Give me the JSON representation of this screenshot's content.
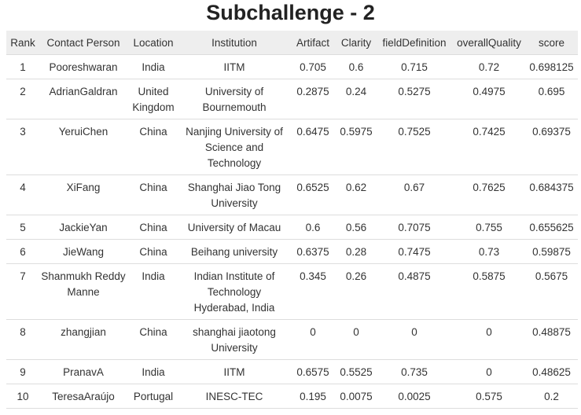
{
  "title": "Subchallenge - 2",
  "table": {
    "headers": [
      "Rank",
      "Contact Person",
      "Location",
      "Institution",
      "Artifact",
      "Clarity",
      "fieldDefinition",
      "overallQuality",
      "score"
    ],
    "rows": [
      [
        "1",
        "Pooreshwaran",
        "India",
        "IITM",
        "0.705",
        "0.6",
        "0.715",
        "0.72",
        "0.698125"
      ],
      [
        "2",
        "AdrianGaldran",
        "United Kingdom",
        "University of Bournemouth",
        "0.2875",
        "0.24",
        "0.5275",
        "0.4975",
        "0.695"
      ],
      [
        "3",
        "YeruiChen",
        "China",
        "Nanjing University of Science and Technology",
        "0.6475",
        "0.5975",
        "0.7525",
        "0.7425",
        "0.69375"
      ],
      [
        "4",
        "XiFang",
        "China",
        "Shanghai Jiao Tong University",
        "0.6525",
        "0.62",
        "0.67",
        "0.7625",
        "0.684375"
      ],
      [
        "5",
        "JackieYan",
        "China",
        "University of Macau",
        "0.6",
        "0.56",
        "0.7075",
        "0.755",
        "0.655625"
      ],
      [
        "6",
        "JieWang",
        "China",
        "Beihang university",
        "0.6375",
        "0.28",
        "0.7475",
        "0.73",
        "0.59875"
      ],
      [
        "7",
        "Shanmukh Reddy Manne",
        "India",
        "Indian Institute of Technology Hyderabad, India",
        "0.345",
        "0.26",
        "0.4875",
        "0.5875",
        "0.5675"
      ],
      [
        "8",
        "zhangjian",
        "China",
        "shanghai jiaotong University",
        "0",
        "0",
        "0",
        "0",
        "0.48875"
      ],
      [
        "9",
        "PranavA",
        "India",
        "IITM",
        "0.6575",
        "0.5525",
        "0.735",
        "0",
        "0.48625"
      ],
      [
        "10",
        "TeresaAraújo",
        "Portugal",
        "INESC-TEC",
        "0.195",
        "0.0075",
        "0.0025",
        "0.575",
        "0.2"
      ]
    ]
  }
}
